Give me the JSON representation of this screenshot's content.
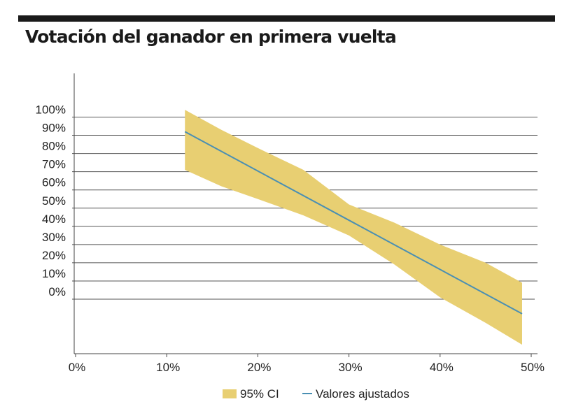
{
  "chart_data": {
    "type": "line",
    "title": "Votación del ganador en primera vuelta",
    "xlabel": "",
    "ylabel": "",
    "x_ticks": [
      "0%",
      "10%",
      "20%",
      "30%",
      "40%",
      "50%"
    ],
    "y_ticks": [
      "0%",
      "10%",
      "20%",
      "30%",
      "40%",
      "50%",
      "60%",
      "70%",
      "80%",
      "90%",
      "100%"
    ],
    "xlim": [
      0,
      50
    ],
    "ylim": [
      0,
      100
    ],
    "grid": "horizontal",
    "legend_position": "bottom",
    "series": [
      {
        "name": "Valores ajustados",
        "type": "line",
        "color": "#4a8fb3",
        "x": [
          12,
          49
        ],
        "y": [
          92,
          -8
        ]
      },
      {
        "name": "95% CI",
        "type": "area",
        "color": "#e8cf72",
        "x": [
          12,
          16,
          20,
          25,
          30,
          35,
          40,
          45,
          49
        ],
        "upper": [
          104,
          93,
          83,
          71,
          52,
          42,
          30,
          20,
          9
        ],
        "lower": [
          71,
          62,
          55,
          46,
          35,
          19,
          1,
          -13,
          -25
        ]
      }
    ]
  }
}
